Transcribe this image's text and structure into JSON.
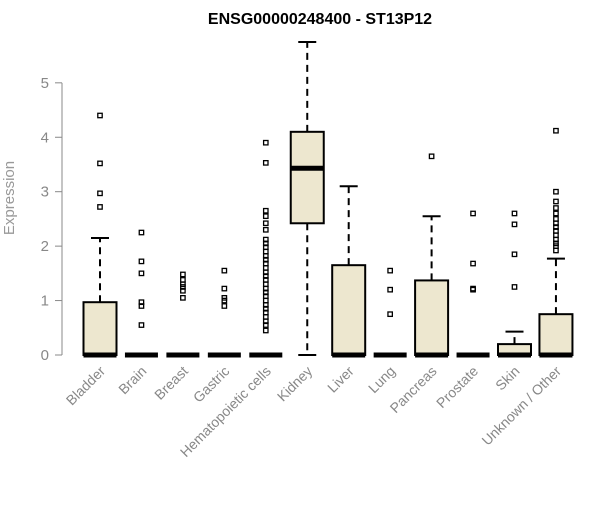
{
  "chart_data": {
    "type": "box",
    "title": "ENSG00000248400 - ST13P12",
    "ylabel": "Expression",
    "xlabel": "",
    "ylim": [
      0,
      5.75
    ],
    "yticks": [
      0,
      1,
      2,
      3,
      4,
      5
    ],
    "colors": {
      "box_fill": "#ede7cf",
      "stroke": "#000000",
      "axis": "#888888"
    },
    "categories": [
      "Bladder",
      "Brain",
      "Breast",
      "Gastric",
      "Hematopoietic cells",
      "Kidney",
      "Liver",
      "Lung",
      "Pancreas",
      "Prostate",
      "Skin",
      "Unknown / Other"
    ],
    "boxes": [
      {
        "name": "Bladder",
        "min": 0,
        "q1": 0,
        "median": 0,
        "q3": 0.97,
        "max": 2.15,
        "outliers": [
          2.72,
          2.97,
          3.52,
          4.4
        ]
      },
      {
        "name": "Brain",
        "min": 0,
        "q1": 0,
        "median": 0,
        "q3": 0,
        "max": 0,
        "outliers": [
          0.55,
          0.9,
          0.97,
          1.5,
          1.72,
          2.25
        ]
      },
      {
        "name": "Breast",
        "min": 0,
        "q1": 0,
        "median": 0,
        "q3": 0,
        "max": 0,
        "outliers": [
          1.05,
          1.18,
          1.25,
          1.3,
          1.38,
          1.48
        ]
      },
      {
        "name": "Gastric",
        "min": 0,
        "q1": 0,
        "median": 0,
        "q3": 0,
        "max": 0,
        "outliers": [
          0.9,
          1.0,
          1.05,
          1.22,
          1.55
        ]
      },
      {
        "name": "Hematopoietic cells",
        "min": 0,
        "q1": 0,
        "median": 0,
        "q3": 0,
        "max": 0,
        "outliers": [
          0.45,
          0.55,
          0.62,
          0.7,
          0.78,
          0.85,
          0.92,
          1.0,
          1.08,
          1.15,
          1.22,
          1.3,
          1.38,
          1.45,
          1.52,
          1.6,
          1.68,
          1.75,
          1.82,
          1.9,
          1.98,
          2.05,
          2.12,
          2.3,
          2.42,
          2.55,
          2.65,
          3.53,
          3.9
        ]
      },
      {
        "name": "Kidney",
        "min": 0,
        "q1": 2.42,
        "median": 3.43,
        "q3": 4.1,
        "max": 5.75,
        "outliers": []
      },
      {
        "name": "Liver",
        "min": 0,
        "q1": 0,
        "median": 0,
        "q3": 1.65,
        "max": 3.1,
        "outliers": []
      },
      {
        "name": "Lung",
        "min": 0,
        "q1": 0,
        "median": 0,
        "q3": 0,
        "max": 0,
        "outliers": [
          0.75,
          1.2,
          1.55
        ]
      },
      {
        "name": "Pancreas",
        "min": 0,
        "q1": 0,
        "median": 0,
        "q3": 1.37,
        "max": 2.55,
        "outliers": [
          3.65
        ]
      },
      {
        "name": "Prostate",
        "min": 0,
        "q1": 0,
        "median": 0,
        "q3": 0,
        "max": 0,
        "outliers": [
          1.2,
          1.22,
          1.68,
          2.6
        ]
      },
      {
        "name": "Skin",
        "min": 0,
        "q1": 0,
        "median": 0,
        "q3": 0.2,
        "max": 0.43,
        "outliers": [
          1.25,
          1.85,
          2.4,
          2.6
        ]
      },
      {
        "name": "Unknown / Other",
        "min": 0,
        "q1": 0,
        "median": 0,
        "q3": 0.75,
        "max": 1.77,
        "outliers": [
          1.92,
          2.0,
          2.05,
          2.12,
          2.2,
          2.28,
          2.35,
          2.42,
          2.5,
          2.6,
          2.7,
          2.82,
          3.0,
          4.12
        ]
      }
    ]
  }
}
